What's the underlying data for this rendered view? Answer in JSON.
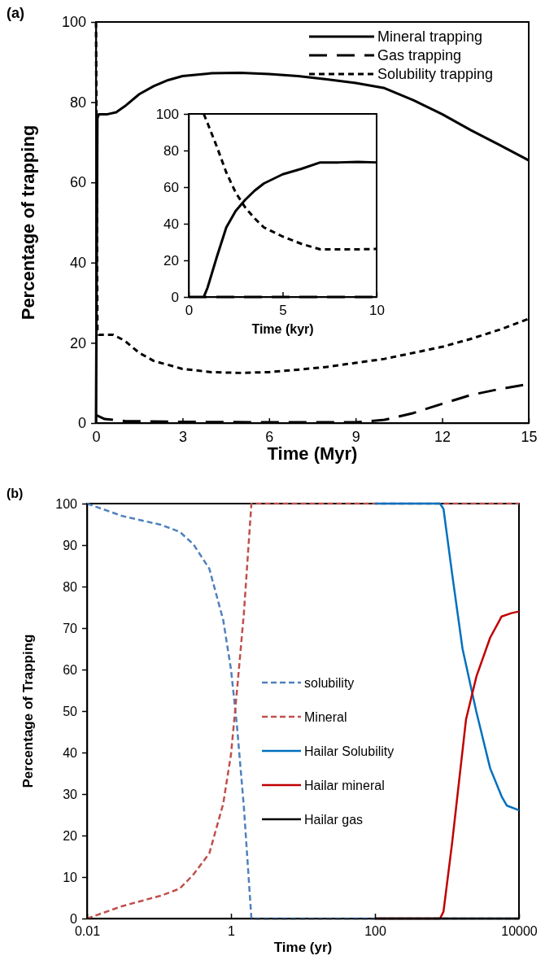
{
  "chart_data": [
    {
      "type": "line",
      "title": "(a)",
      "xlabel": "Time (Myr)",
      "ylabel": "Percentage of trapping",
      "xlim": [
        0,
        15
      ],
      "xticks": [
        0,
        3,
        6,
        9,
        12,
        15
      ],
      "ylim": [
        0,
        100
      ],
      "yticks": [
        0,
        20,
        40,
        60,
        80,
        100
      ],
      "grid": false,
      "legend": "top right",
      "marker": "none",
      "series": [
        {
          "name": "Mineral trapping",
          "color": "#000000",
          "line_style": "solid",
          "x": [
            0,
            0.05,
            0.1,
            0.4,
            0.7,
            1,
            1.5,
            2,
            2.5,
            3,
            4,
            5,
            6,
            7,
            8,
            9,
            10,
            11,
            12,
            13,
            14,
            15
          ],
          "values": [
            0,
            76,
            77,
            77,
            77.5,
            79,
            82,
            84,
            85.5,
            86.5,
            87.2,
            87.3,
            87,
            86.5,
            85.7,
            84.8,
            83.5,
            80.5,
            77,
            73,
            69.3,
            65.5
          ]
        },
        {
          "name": "Gas trapping",
          "color": "#000000",
          "line_style": "dashed",
          "x": [
            0,
            0.3,
            1,
            3,
            6,
            9,
            10,
            11,
            12,
            13,
            14,
            15
          ],
          "values": [
            2,
            1,
            0.5,
            0.3,
            0.2,
            0.2,
            0.8,
            2.5,
            4.8,
            7,
            8.5,
            9.7
          ]
        },
        {
          "name": "Solubility trapping",
          "color": "#000000",
          "line_style": "dotted",
          "x": [
            0,
            0.05,
            0.1,
            0.6,
            1,
            1.5,
            2,
            3,
            4,
            5,
            6,
            7,
            8,
            9,
            10,
            11,
            12,
            13,
            14,
            15
          ],
          "values": [
            100,
            23,
            22,
            22,
            20.5,
            17.5,
            15.5,
            13.5,
            12.7,
            12.5,
            12.7,
            13.3,
            14,
            15,
            16,
            17.5,
            19,
            21,
            23.3,
            26
          ]
        }
      ]
    },
    {
      "type": "line",
      "xlabel": "Time (kyr)",
      "xlim": [
        0,
        10
      ],
      "xticks": [
        0,
        5,
        10
      ],
      "ylim": [
        0,
        100
      ],
      "yticks": [
        0,
        20,
        40,
        60,
        80,
        100
      ],
      "grid": false,
      "legend": false,
      "marker": "none",
      "series": [
        {
          "color": "#000000",
          "line_style": "solid",
          "x": [
            0.8,
            1,
            1.5,
            2,
            2.5,
            3,
            3.5,
            4,
            5,
            6,
            7,
            8,
            9,
            10
          ],
          "values": [
            0,
            5,
            22,
            38,
            47,
            53,
            58,
            62,
            67,
            70,
            73.5,
            73.5,
            73.8,
            73.5
          ]
        },
        {
          "color": "#000000",
          "line_style": "dashed",
          "x": [
            0,
            10
          ],
          "values": [
            0,
            0
          ]
        },
        {
          "color": "#000000",
          "line_style": "dotted",
          "x": [
            0.8,
            1,
            1.5,
            2,
            2.5,
            3,
            3.5,
            4,
            5,
            6,
            7,
            8,
            9,
            10
          ],
          "values": [
            100,
            95,
            82,
            68,
            57,
            49,
            43,
            38,
            33,
            29,
            26,
            26,
            26,
            26.2
          ]
        }
      ]
    },
    {
      "type": "line",
      "title": "(b)",
      "xlabel": "Time (yr)",
      "ylabel": "Percentage of Trapping",
      "log": "x",
      "xlim": [
        0.01,
        10000
      ],
      "xticks": [
        0.01,
        1,
        100,
        10000
      ],
      "ylim": [
        0,
        100
      ],
      "yticks": [
        0,
        10,
        20,
        30,
        40,
        50,
        60,
        70,
        80,
        90,
        100
      ],
      "grid": false,
      "legend": "center",
      "marker": "none",
      "series": [
        {
          "name": "solubility",
          "color": "#4f81bd",
          "line_style": "dashed",
          "x": [
            0.01,
            0.031,
            0.106,
            0.194,
            0.3,
            0.5,
            0.78,
            1,
            1.21,
            1.51,
            1.92,
            10000
          ],
          "values": [
            100,
            97,
            94.9,
            93.2,
            90.2,
            84.3,
            71.9,
            60,
            46.4,
            26.8,
            0,
            0
          ]
        },
        {
          "name": "Mineral",
          "color": "#c0504d",
          "line_style": "dashed",
          "x": [
            0.01,
            0.031,
            0.106,
            0.194,
            0.3,
            0.5,
            0.78,
            1,
            1.21,
            1.51,
            1.92,
            10000
          ],
          "values": [
            0,
            3,
            5.5,
            7.2,
            10.6,
            15.7,
            27.7,
            39.6,
            54.9,
            73.6,
            100,
            100
          ]
        },
        {
          "name": "Hailar Solubility",
          "color": "#0070c0",
          "line_style": "solid",
          "x": [
            100,
            802,
            895,
            1180,
            1645,
            2560,
            3980,
            5750,
            6800,
            10000
          ],
          "values": [
            100,
            100,
            98.7,
            83,
            65,
            49.8,
            36.2,
            29.4,
            27.2,
            26.1
          ]
        },
        {
          "name": "Hailar mineral",
          "color": "#c00000",
          "line_style": "solid",
          "x": [
            100,
            802,
            895,
            1180,
            1840,
            2560,
            3980,
            5750,
            7870,
            10000
          ],
          "values": [
            0,
            0,
            1.7,
            18.3,
            48,
            58.3,
            67.7,
            72.8,
            73.6,
            74
          ]
        },
        {
          "name": "Hailar gas",
          "color": "#000000",
          "line_style": "solid",
          "x": [
            100,
            10000
          ],
          "values": [
            0,
            0
          ]
        }
      ]
    }
  ]
}
